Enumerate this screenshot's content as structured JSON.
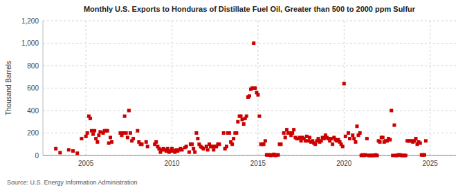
{
  "chart_data": {
    "type": "scatter",
    "title": "Monthly U.S. Exports to Honduras of Distillate Fuel Oil, Greater than 500 to 2000 ppm Sulfur",
    "ylabel": "Thousand Barrels",
    "annotations": [
      "Source: U.S. Energy Information Administration"
    ],
    "color": "#cc0000",
    "marker": "square",
    "grid": true,
    "xlim": [
      2002.5,
      2026.5
    ],
    "xticks": [
      2005,
      2010,
      2015,
      2020,
      2025
    ],
    "ylim": [
      0,
      1200
    ],
    "yticks": [
      0,
      200,
      400,
      600,
      800,
      {
        "value": 1000,
        "label": "1,000"
      },
      {
        "value": 1200,
        "label": "1,200"
      }
    ],
    "x": [
      2003.25,
      2003.5,
      2004.0,
      2004.25,
      2004.5,
      2004.75,
      2005.0,
      2005.08,
      2005.17,
      2005.25,
      2005.33,
      2005.42,
      2005.5,
      2005.58,
      2005.67,
      2005.75,
      2005.83,
      2006.0,
      2006.08,
      2006.17,
      2006.25,
      2006.33,
      2006.42,
      2006.5,
      2007.0,
      2007.08,
      2007.17,
      2007.25,
      2007.33,
      2007.42,
      2007.5,
      2007.58,
      2007.67,
      2007.75,
      2008.0,
      2008.08,
      2008.17,
      2008.25,
      2008.5,
      2008.58,
      2009.0,
      2009.08,
      2009.17,
      2009.25,
      2009.33,
      2009.42,
      2009.5,
      2009.58,
      2009.67,
      2009.75,
      2009.83,
      2009.92,
      2010.0,
      2010.08,
      2010.17,
      2010.25,
      2010.33,
      2010.42,
      2010.5,
      2010.58,
      2010.75,
      2010.83,
      2011.0,
      2011.08,
      2011.17,
      2011.25,
      2011.33,
      2011.42,
      2011.5,
      2011.58,
      2011.67,
      2011.75,
      2011.83,
      2012.0,
      2012.08,
      2012.17,
      2012.25,
      2012.33,
      2012.42,
      2012.5,
      2012.58,
      2012.67,
      2012.75,
      2013.0,
      2013.08,
      2013.17,
      2013.25,
      2013.33,
      2013.42,
      2013.5,
      2013.58,
      2013.67,
      2013.75,
      2013.83,
      2013.92,
      2014.0,
      2014.08,
      2014.17,
      2014.25,
      2014.33,
      2014.42,
      2014.5,
      2014.58,
      2014.67,
      2014.75,
      2014.83,
      2014.92,
      2015.0,
      2015.08,
      2015.17,
      2015.25,
      2015.33,
      2015.42,
      2015.5,
      2015.58,
      2015.67,
      2015.75,
      2015.83,
      2015.92,
      2016.0,
      2016.08,
      2016.17,
      2016.25,
      2016.33,
      2016.5,
      2016.58,
      2016.67,
      2016.75,
      2016.83,
      2016.92,
      2017.0,
      2017.08,
      2017.17,
      2017.25,
      2017.33,
      2017.42,
      2017.5,
      2017.58,
      2017.67,
      2017.75,
      2017.83,
      2017.92,
      2018.0,
      2018.08,
      2018.17,
      2018.25,
      2018.33,
      2018.42,
      2018.5,
      2018.58,
      2018.67,
      2018.75,
      2018.83,
      2018.92,
      2019.0,
      2019.08,
      2019.17,
      2019.25,
      2019.33,
      2019.42,
      2019.5,
      2019.58,
      2019.67,
      2019.75,
      2019.83,
      2019.92,
      2020.0,
      2020.08,
      2020.25,
      2020.33,
      2020.5,
      2020.58,
      2020.67,
      2020.75,
      2020.83,
      2020.92,
      2021.0,
      2021.08,
      2021.17,
      2021.25,
      2021.33,
      2021.42,
      2021.5,
      2021.58,
      2021.67,
      2021.75,
      2021.83,
      2021.92,
      2022.0,
      2022.08,
      2022.17,
      2022.25,
      2022.33,
      2022.42,
      2022.5,
      2022.58,
      2022.67,
      2022.75,
      2022.83,
      2022.92,
      2023.0,
      2023.08,
      2023.17,
      2023.25,
      2023.33,
      2023.42,
      2023.5,
      2023.58,
      2023.67,
      2023.75,
      2023.83,
      2023.92,
      2024.0,
      2024.08,
      2024.17,
      2024.25,
      2024.33,
      2024.42,
      2024.5,
      2024.58,
      2024.67,
      2024.75
    ],
    "values": [
      60,
      25,
      50,
      40,
      20,
      150,
      170,
      200,
      350,
      330,
      220,
      190,
      220,
      150,
      120,
      180,
      210,
      200,
      220,
      220,
      220,
      110,
      160,
      120,
      200,
      180,
      200,
      350,
      200,
      160,
      400,
      200,
      130,
      150,
      220,
      120,
      100,
      100,
      120,
      80,
      100,
      120,
      80,
      60,
      30,
      50,
      60,
      50,
      40,
      60,
      30,
      40,
      60,
      40,
      30,
      50,
      40,
      50,
      60,
      50,
      70,
      80,
      30,
      100,
      100,
      60,
      30,
      200,
      150,
      100,
      80,
      70,
      60,
      80,
      50,
      100,
      80,
      80,
      50,
      80,
      80,
      100,
      100,
      200,
      60,
      80,
      200,
      200,
      120,
      100,
      150,
      200,
      200,
      300,
      350,
      350,
      320,
      280,
      330,
      350,
      520,
      530,
      590,
      600,
      1000,
      600,
      560,
      540,
      350,
      100,
      100,
      100,
      130,
      5,
      5,
      5,
      0,
      5,
      10,
      0,
      5,
      5,
      100,
      100,
      200,
      160,
      230,
      200,
      200,
      180,
      200,
      230,
      160,
      150,
      150,
      160,
      130,
      160,
      150,
      130,
      170,
      130,
      160,
      120,
      130,
      110,
      100,
      130,
      150,
      120,
      130,
      160,
      150,
      180,
      160,
      150,
      130,
      150,
      100,
      160,
      140,
      130,
      140,
      120,
      100,
      80,
      640,
      170,
      200,
      150,
      180,
      150,
      120,
      260,
      180,
      200,
      0,
      5,
      0,
      5,
      150,
      0,
      0,
      0,
      0,
      0,
      5,
      0,
      130,
      120,
      160,
      160,
      120,
      130,
      130,
      150,
      140,
      400,
      0,
      270,
      0,
      0,
      5,
      5,
      0,
      0,
      0,
      0,
      130,
      130,
      130,
      130,
      120,
      130,
      150,
      100,
      120,
      110,
      5,
      5,
      5,
      130
    ]
  }
}
